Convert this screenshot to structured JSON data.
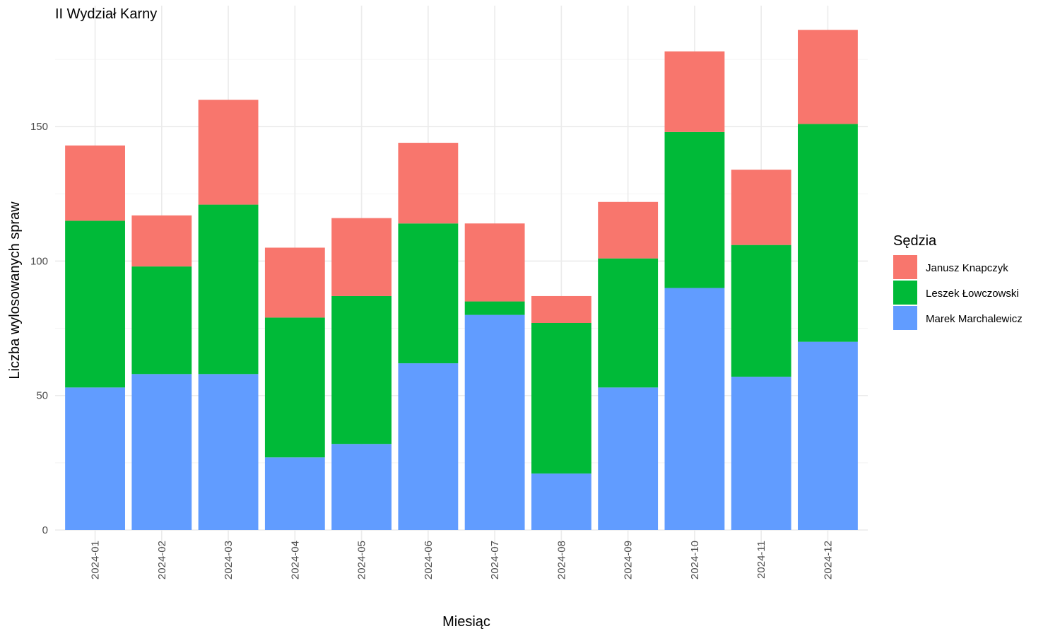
{
  "chart_data": {
    "type": "bar",
    "stacked": true,
    "title": "II Wydział Karny",
    "xlabel": "Miesiąc",
    "ylabel": "Liczba wylosowanych spraw",
    "legend_title": "Sędzia",
    "legend_position": "right",
    "grid": true,
    "ylim": [
      0,
      195
    ],
    "yticks": [
      0,
      50,
      100,
      150
    ],
    "categories": [
      "2024-01",
      "2024-02",
      "2024-03",
      "2024-04",
      "2024-05",
      "2024-06",
      "2024-07",
      "2024-08",
      "2024-09",
      "2024-10",
      "2024-11",
      "2024-12"
    ],
    "series": [
      {
        "name": "Janusz Knapczyk",
        "color": "#F8766D",
        "values": [
          28,
          19,
          39,
          26,
          29,
          30,
          29,
          10,
          21,
          30,
          28,
          35
        ]
      },
      {
        "name": "Leszek Łowczowski",
        "color": "#00BA38",
        "values": [
          62,
          40,
          63,
          52,
          55,
          52,
          5,
          56,
          48,
          58,
          49,
          81
        ]
      },
      {
        "name": "Marek Marchalewicz",
        "color": "#619CFF",
        "values": [
          53,
          58,
          58,
          27,
          32,
          62,
          80,
          21,
          53,
          90,
          57,
          70
        ]
      }
    ]
  }
}
